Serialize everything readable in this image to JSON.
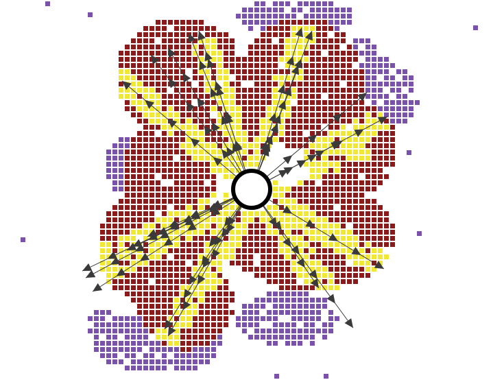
{
  "colors": {
    "background": "#ffffff",
    "purple_cell": "#7b52ab",
    "red_cell": "#8b1a1a",
    "red_cell_dark": "#2a0000",
    "yellow_cell": "#f0e832",
    "arrow": "#3a3a3a",
    "center_ring": "#000000"
  },
  "legend": [],
  "labels": []
}
